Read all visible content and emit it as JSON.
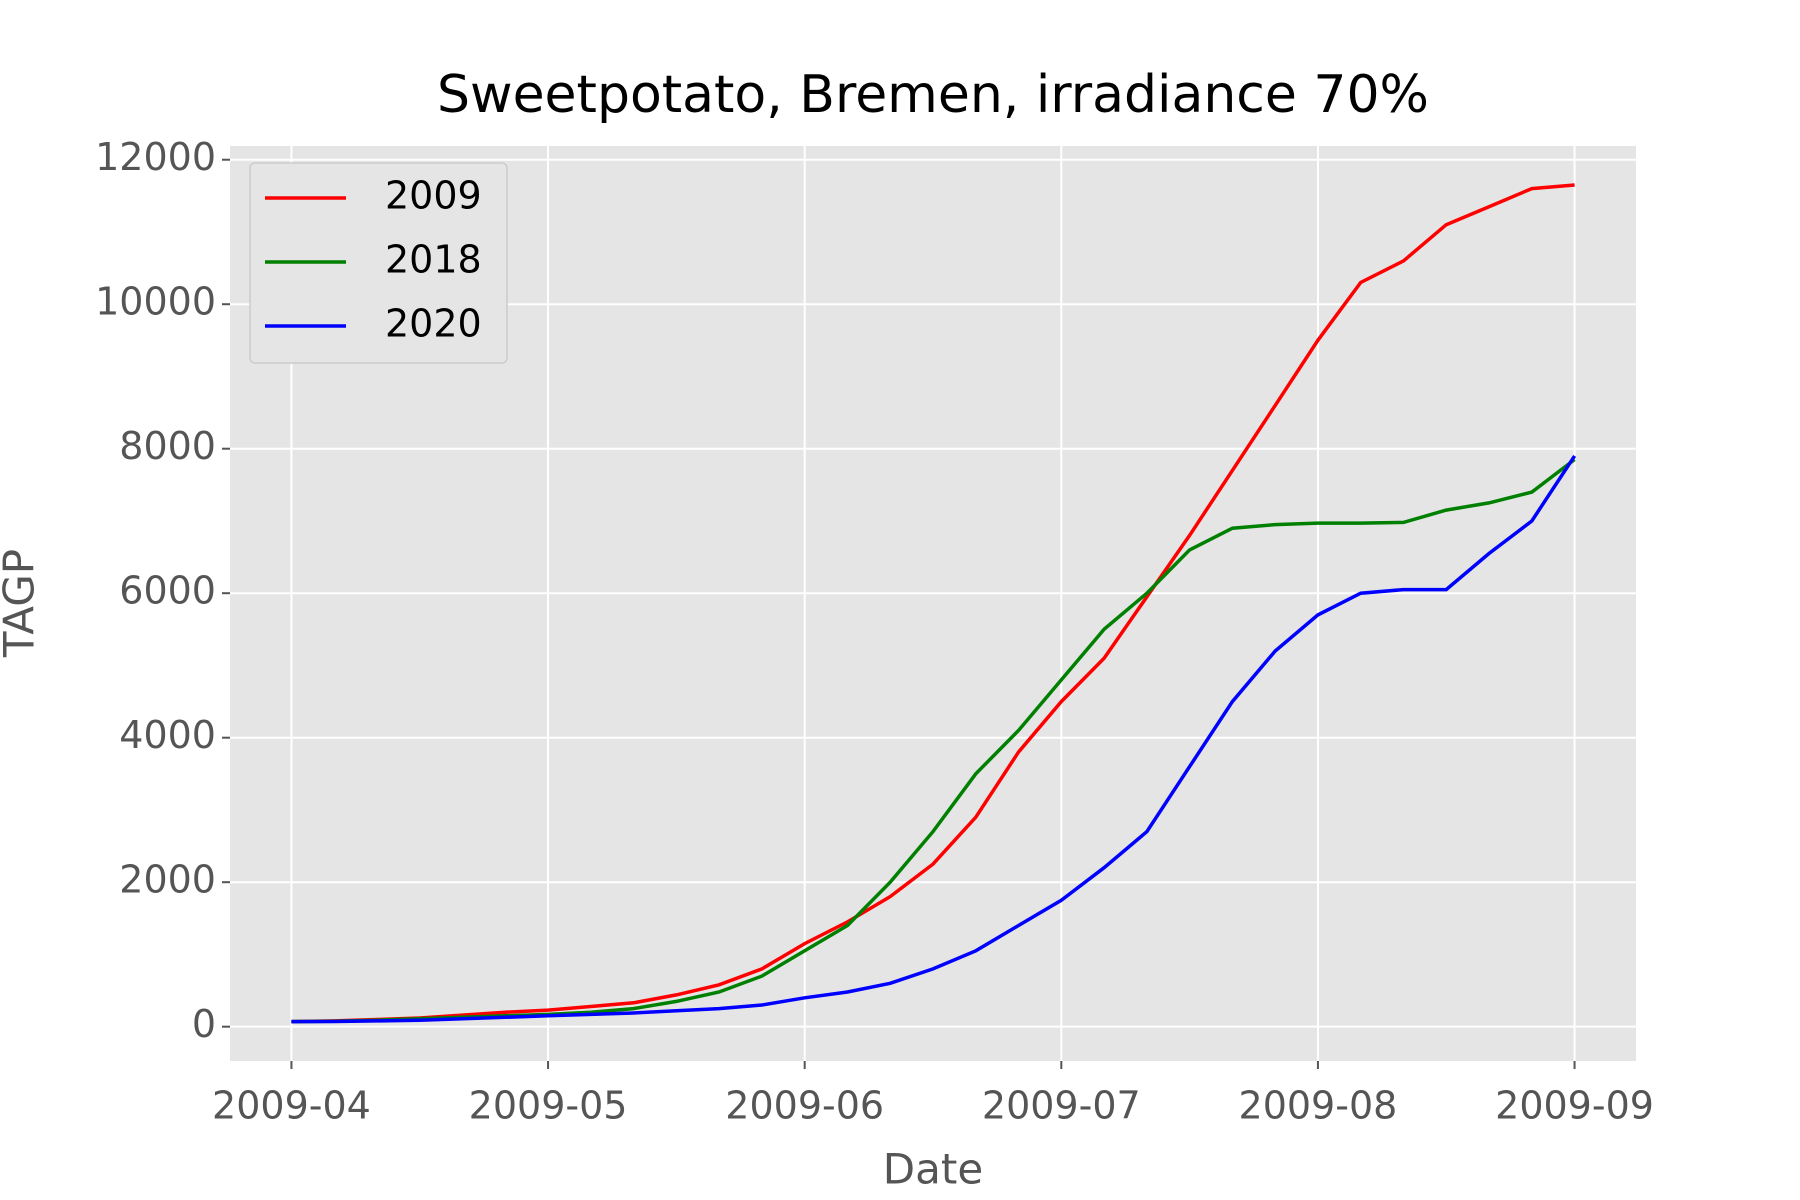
{
  "chart_data": {
    "type": "line",
    "title": "Sweetpotato, Bremen, irradiance 70%",
    "x_label": "Date",
    "y_label": "TAGP",
    "x": [
      "2009-04",
      null,
      null,
      null,
      null,
      null,
      "2009-05",
      null,
      null,
      null,
      null,
      null,
      "2009-06",
      null,
      null,
      null,
      null,
      null,
      "2009-07",
      null,
      null,
      null,
      null,
      null,
      "2009-08",
      null,
      null,
      null,
      null,
      null,
      "2009-09"
    ],
    "series": [
      {
        "name": "2009",
        "color": "#ff0000",
        "values": [
          70,
          80,
          100,
          120,
          160,
          200,
          230,
          280,
          330,
          440,
          580,
          800,
          1150,
          1450,
          1800,
          2250,
          2900,
          3800,
          4500,
          5100,
          5950,
          6800,
          7700,
          8600,
          9500,
          10300,
          10600,
          11100,
          11350,
          11600,
          11650
        ]
      },
      {
        "name": "2018",
        "color": "#008000",
        "values": [
          70,
          75,
          90,
          110,
          130,
          150,
          170,
          200,
          250,
          350,
          480,
          700,
          1050,
          1400,
          2000,
          2700,
          3500,
          4100,
          4800,
          5500,
          6000,
          6600,
          6900,
          6950,
          6970,
          6970,
          6980,
          7150,
          7250,
          7400,
          7850
        ]
      },
      {
        "name": "2020",
        "color": "#0000ff",
        "values": [
          70,
          72,
          80,
          90,
          110,
          130,
          150,
          170,
          190,
          220,
          250,
          300,
          400,
          480,
          600,
          800,
          1050,
          1400,
          1750,
          2200,
          2700,
          3600,
          4500,
          5200,
          5700,
          6000,
          6050,
          6050,
          6550,
          7000,
          7900
        ]
      }
    ],
    "ylim": [
      -475,
      12190
    ],
    "yticks": [
      0,
      2000,
      4000,
      6000,
      8000,
      10000,
      12000
    ],
    "grid": true,
    "legend": "upper left"
  }
}
